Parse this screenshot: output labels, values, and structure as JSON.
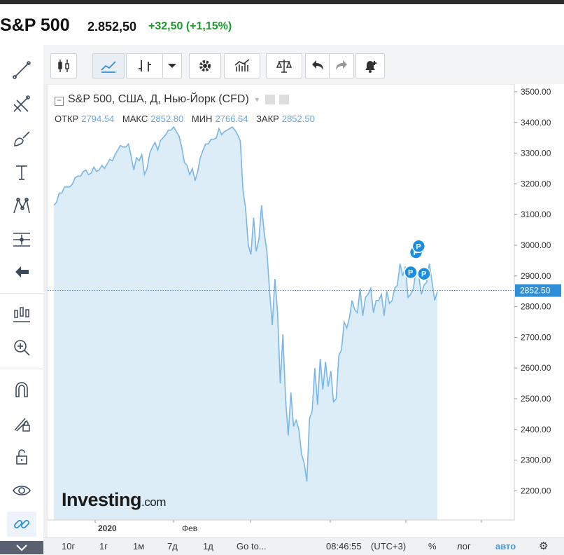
{
  "header": {
    "name": "S&P 500",
    "price": "2.852,50",
    "change": "+32,50 (+1,15%)",
    "change_color": "#1a9b2a"
  },
  "left_toolbar": {
    "icons": [
      "trend-line-icon",
      "fib-tools-icon",
      "brush-icon",
      "text-icon",
      "pattern-icon",
      "measure-icon",
      "back-arrow-icon",
      "indicators-icon",
      "zoom-icon",
      "magnet-icon",
      "lock-pencil-icon",
      "unlock-icon",
      "eye-icon",
      "link-icon",
      "collapse-chevron-icon"
    ]
  },
  "top_toolbar": {
    "icons": [
      "candles-icon",
      "area-chart-icon",
      "bars-icon",
      "dropdown-icon",
      "settings-icon",
      "indicators-icon",
      "compare-icon",
      "undo-icon",
      "redo-icon",
      "alert-bell-icon"
    ]
  },
  "legend": {
    "title": "S&P 500, США, Д, Нью-Йорк (CFD)",
    "open_label": "ОТКР",
    "open": "2794.54",
    "high_label": "МАКС",
    "high": "2852.80",
    "low_label": "МИН",
    "low": "2766.64",
    "close_label": "ЗАКР",
    "close": "2852.50"
  },
  "watermark": {
    "brand": "Investing",
    "suffix": ".com"
  },
  "bottom_bar": {
    "ranges": [
      "10г",
      "1г",
      "1м",
      "7д",
      "1д"
    ],
    "goto": "Go to...",
    "time": "08:46:55",
    "tz": "(UTC+3)",
    "percent": "%",
    "log": "лог",
    "auto": "авто"
  },
  "colors": {
    "line": "#7ab6e6",
    "area": "#dcedf8",
    "price_label_bg": "#2f8fd6",
    "marker": "#1a8ee0"
  },
  "chart_data": {
    "type": "area",
    "title": "S&P 500, США, Д, Нью-Йорк (CFD)",
    "xlabel": "",
    "ylabel": "",
    "ylim": [
      2105,
      3525
    ],
    "y_ticks": [
      "3500.00",
      "3400.00",
      "3300.00",
      "3200.00",
      "3100.00",
      "3000.00",
      "2900.00",
      "2800.00",
      "2700.00",
      "2600.00",
      "2500.00",
      "2400.00",
      "2300.00",
      "2200.00"
    ],
    "x_tick_labels": [
      "2020",
      "Фев"
    ],
    "current_value": 2852.5,
    "current_label": "2852.50",
    "series": [
      {
        "values": [
          3130,
          3140,
          3170,
          3170,
          3190,
          3190,
          3190,
          3200,
          3220,
          3225,
          3225,
          3240,
          3245,
          3230,
          3235,
          3255,
          3240,
          3245,
          3260,
          3250,
          3265,
          3280,
          3275,
          3295,
          3310,
          3325,
          3320,
          3320,
          3330,
          3290,
          3245,
          3285,
          3275,
          3295,
          3230,
          3250,
          3300,
          3320,
          3335,
          3310,
          3340,
          3350,
          3360,
          3375,
          3375,
          3385,
          3370,
          3355,
          3320,
          3270,
          3260,
          3230,
          3250,
          3210,
          3240,
          3285,
          3310,
          3330,
          3330,
          3345,
          3345,
          3350,
          3380,
          3360,
          3370,
          3375,
          3380,
          3385,
          3375,
          3360,
          3340,
          3180,
          3120,
          3000,
          2970,
          3090,
          2980,
          3020,
          3130,
          3040,
          2980,
          2850,
          2740,
          2890,
          2780,
          2550,
          2710,
          2500,
          2380,
          2520,
          2410,
          2430,
          2400,
          2320,
          2290,
          2230,
          2435,
          2460,
          2600,
          2480,
          2630,
          2530,
          2620,
          2540,
          2590,
          2490,
          2500,
          2640,
          2660,
          2750,
          2730,
          2765,
          2820,
          2790,
          2780,
          2860,
          2770,
          2830,
          2840,
          2860,
          2780,
          2820,
          2820,
          2840,
          2770,
          2850,
          2810,
          2820,
          2860,
          2870,
          2940,
          2900,
          2930,
          2830,
          2840,
          2860,
          2920,
          2900,
          2840,
          2870,
          2880,
          2940,
          2880,
          2820,
          2850
        ],
        "color": "#7ab6e6"
      }
    ],
    "markers": [
      {
        "index": 134,
        "value": 2880,
        "label": "P"
      },
      {
        "index": 136,
        "value": 2945,
        "label": "P"
      },
      {
        "index": 137,
        "value": 2965,
        "label": "P"
      },
      {
        "index": 139,
        "value": 2875,
        "label": "P"
      }
    ]
  }
}
